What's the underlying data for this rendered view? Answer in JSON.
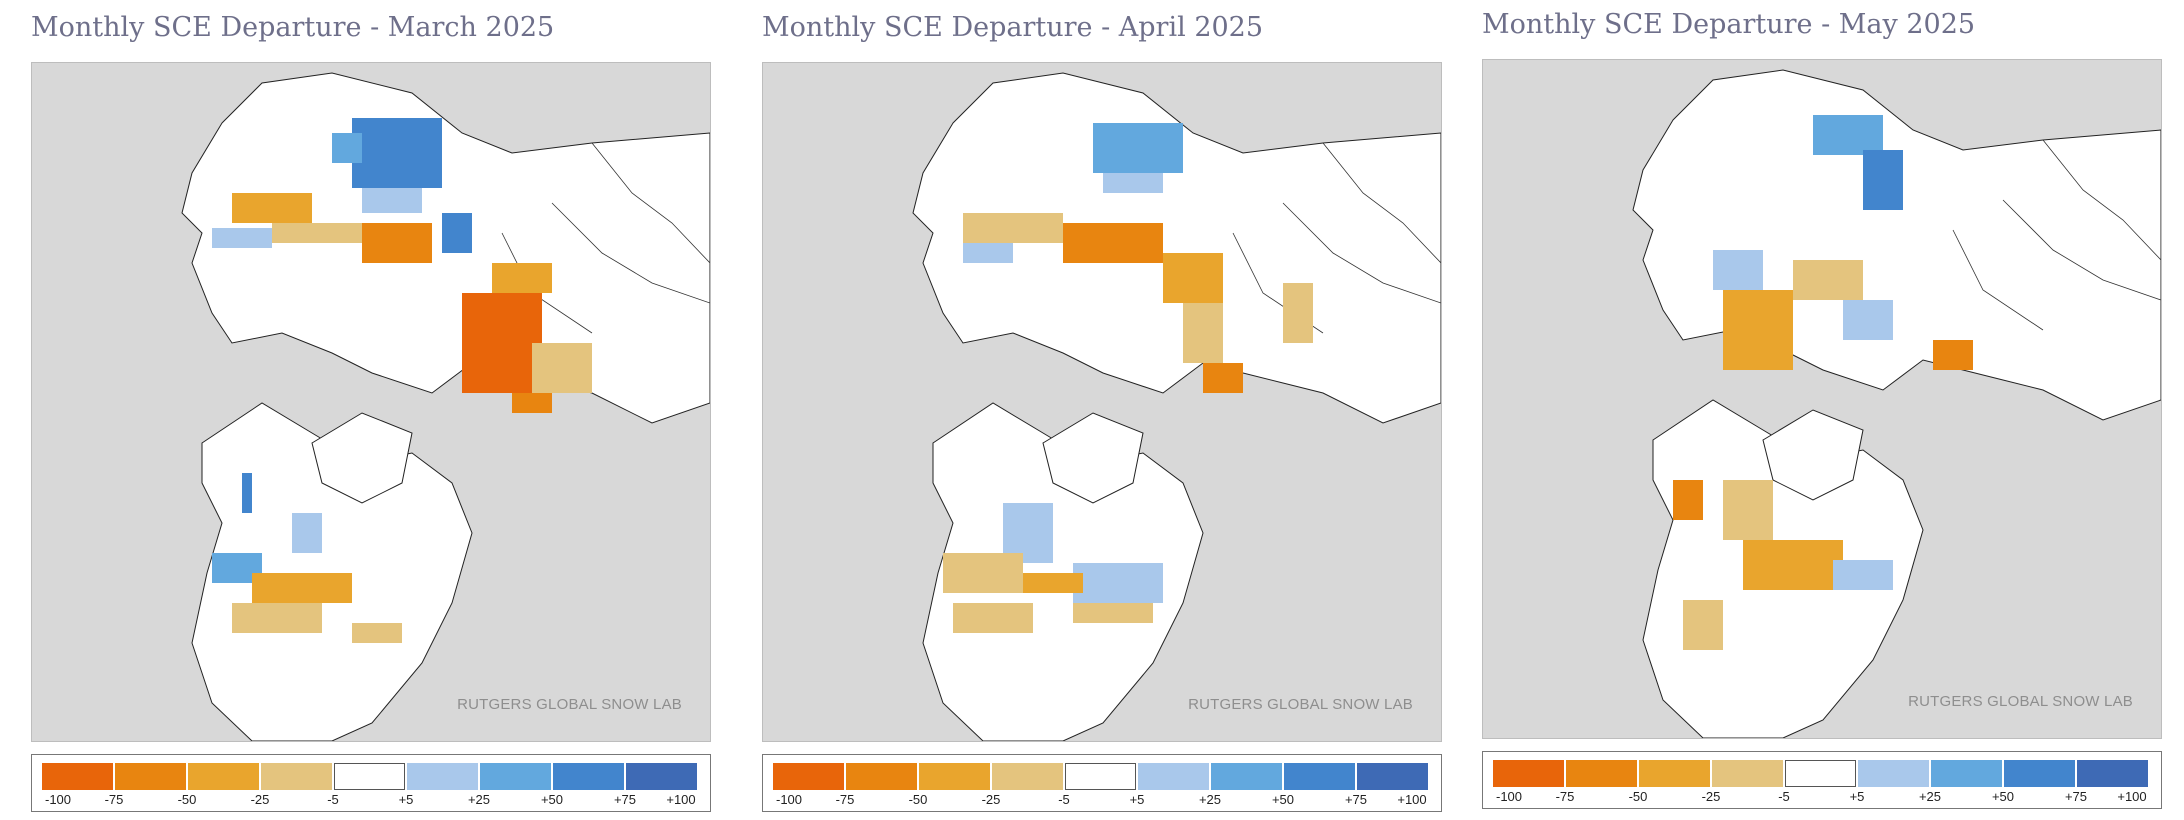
{
  "panels": [
    {
      "title": "Monthly SCE Departure - March 2025",
      "watermark": "RUTGERS GLOBAL SNOW LAB"
    },
    {
      "title": "Monthly SCE Departure - April 2025",
      "watermark": "RUTGERS GLOBAL SNOW LAB"
    },
    {
      "title": "Monthly SCE Departure - May 2025",
      "watermark": "RUTGERS GLOBAL SNOW LAB"
    }
  ],
  "legend": {
    "colors": [
      "#e8650a",
      "#e88510",
      "#e9a52d",
      "#e4c47e",
      "#ffffff",
      "#a9c8eb",
      "#62a8de",
      "#4285cd",
      "#3e6ab5"
    ],
    "labels": [
      "-100",
      "-75",
      "-50",
      "-25",
      "-5",
      "+5",
      "+25",
      "+50",
      "+75",
      "+100"
    ]
  }
}
